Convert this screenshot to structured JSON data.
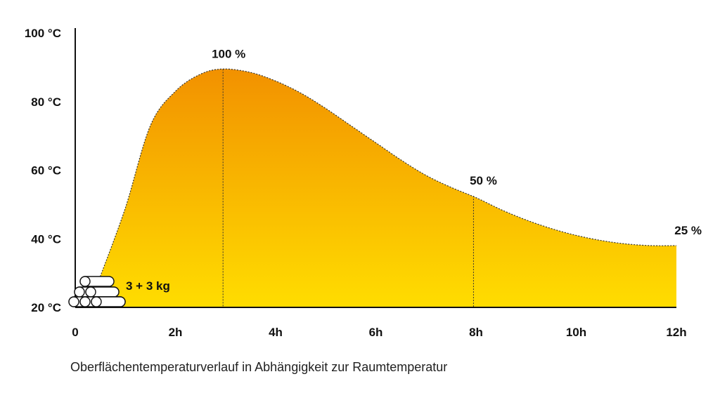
{
  "chart_data": {
    "type": "area",
    "caption": "Oberflächentemperaturverlauf in Abhängigkeit zur Raumtemperatur",
    "x_unit": "h",
    "y_unit": "°C",
    "xlim": [
      0,
      12
    ],
    "ylim": [
      20,
      100
    ],
    "x_ticks": [
      {
        "value": 0,
        "label": "0"
      },
      {
        "value": 2,
        "label": "2h"
      },
      {
        "value": 4,
        "label": "4h"
      },
      {
        "value": 6,
        "label": "6h"
      },
      {
        "value": 8,
        "label": "8h"
      },
      {
        "value": 10,
        "label": "10h"
      },
      {
        "value": 12,
        "label": "12h"
      }
    ],
    "y_ticks": [
      {
        "value": 20,
        "label": "20 °C"
      },
      {
        "value": 40,
        "label": "40 °C"
      },
      {
        "value": 60,
        "label": "60 °C"
      },
      {
        "value": 80,
        "label": "80 °C"
      },
      {
        "value": 100,
        "label": "100 °C"
      }
    ],
    "series": [
      {
        "x": [
          0.5,
          1.0,
          1.5,
          2.0,
          2.5,
          2.95,
          3.5,
          4.0,
          4.5,
          5.0,
          5.5,
          6.0,
          6.5,
          7.0,
          7.5,
          8.0,
          8.5,
          9.0,
          9.5,
          10.0,
          10.5,
          11.0,
          11.5,
          12.0
        ],
        "y": [
          29,
          49,
          73,
          83,
          88,
          89.5,
          88.5,
          86,
          82.5,
          78,
          73,
          68,
          63,
          58.5,
          55,
          52,
          48.5,
          45.5,
          43,
          41,
          39.5,
          38.5,
          38,
          38
        ]
      }
    ],
    "annotations": [
      {
        "x": 2.95,
        "y": 89.5,
        "label": "100 %"
      },
      {
        "x": 7.95,
        "y": 52.5,
        "label": "50 %"
      },
      {
        "x": 12.0,
        "y": 38,
        "label": "25 %"
      }
    ],
    "wood_label": "3 + 3 kg",
    "colors": {
      "fill_top": "#F29100",
      "fill_bottom": "#FFDD00",
      "line": "#333333"
    }
  }
}
